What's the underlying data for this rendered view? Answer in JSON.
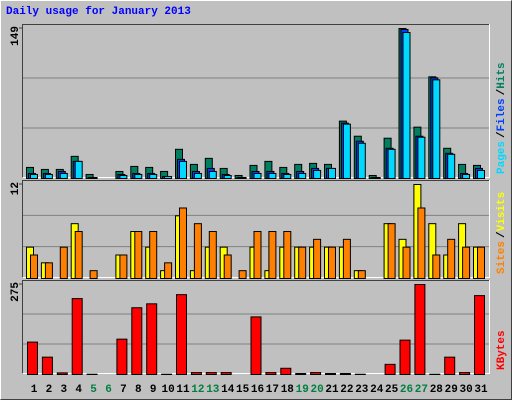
{
  "title": "Daily usage for January 2013",
  "legend_separator": "/",
  "chart_data": [
    {
      "type": "bar",
      "ylim": [
        0,
        149
      ],
      "yticks": [
        149
      ],
      "grid_divisions": 3,
      "series": [
        {
          "name": "Hits",
          "color": "#008060",
          "values": [
            11,
            9,
            9,
            22,
            4,
            0,
            7,
            12,
            11,
            7,
            29,
            14,
            20,
            10,
            3,
            13,
            17,
            11,
            14,
            15,
            14,
            57,
            42,
            3,
            40,
            149,
            51,
            101,
            30,
            14,
            13
          ]
        },
        {
          "name": "Files",
          "color": "#0040ff",
          "values": [
            5,
            5,
            7,
            17,
            1,
            0,
            4,
            5,
            5,
            2,
            19,
            7,
            10,
            4,
            1,
            7,
            7,
            5,
            7,
            10,
            10,
            55,
            37,
            1,
            30,
            148,
            42,
            100,
            25,
            5,
            10
          ]
        },
        {
          "name": "Pages",
          "color": "#00d8ff",
          "values": [
            4,
            4,
            5,
            17,
            1,
            0,
            3,
            4,
            4,
            2,
            17,
            5,
            7,
            3,
            1,
            5,
            5,
            4,
            5,
            8,
            10,
            54,
            35,
            1,
            29,
            145,
            41,
            98,
            24,
            4,
            8
          ]
        }
      ]
    },
    {
      "type": "bar",
      "ylim": [
        0,
        12
      ],
      "yticks": [
        12
      ],
      "grid_divisions": 3,
      "series": [
        {
          "name": "Visits",
          "color": "#ffff00",
          "values": [
            4,
            2,
            0,
            7,
            0,
            0,
            3,
            6,
            4,
            1,
            8,
            1,
            4,
            4,
            0,
            4,
            1,
            4,
            4,
            4,
            4,
            4,
            1,
            0,
            7,
            5,
            12,
            7,
            3,
            7,
            4
          ]
        },
        {
          "name": "Sites",
          "color": "#ff8000",
          "values": [
            3,
            2,
            4,
            6,
            1,
            0,
            3,
            6,
            6,
            2,
            9,
            7,
            6,
            3,
            1,
            6,
            6,
            6,
            4,
            5,
            4,
            5,
            1,
            0,
            7,
            4,
            9,
            3,
            5,
            4,
            4
          ]
        }
      ]
    },
    {
      "type": "bar",
      "ylim": [
        0,
        275
      ],
      "yticks": [
        275
      ],
      "grid_divisions": 3,
      "series": [
        {
          "name": "KBytes",
          "color": "#ff0000",
          "values": [
            99,
            53,
            5,
            232,
            1,
            0,
            108,
            204,
            216,
            1,
            244,
            6,
            6,
            6,
            0,
            176,
            6,
            19,
            3,
            6,
            3,
            3,
            1,
            0,
            31,
            105,
            275,
            1,
            53,
            6,
            241
          ]
        }
      ],
      "categories": [
        "1",
        "2",
        "3",
        "4",
        "5",
        "6",
        "7",
        "8",
        "9",
        "10",
        "11",
        "12",
        "13",
        "14",
        "15",
        "16",
        "17",
        "18",
        "19",
        "20",
        "21",
        "22",
        "23",
        "24",
        "25",
        "26",
        "27",
        "28",
        "29",
        "30",
        "31"
      ],
      "category_colors": [
        "#000000",
        "#000000",
        "#000000",
        "#000000",
        "#008040",
        "#008040",
        "#000000",
        "#000000",
        "#000000",
        "#000000",
        "#000000",
        "#008040",
        "#008040",
        "#000000",
        "#000000",
        "#000000",
        "#000000",
        "#000000",
        "#008040",
        "#008040",
        "#000000",
        "#000000",
        "#000000",
        "#000000",
        "#000000",
        "#008040",
        "#008040",
        "#000000",
        "#000000",
        "#000000",
        "#000000"
      ]
    }
  ]
}
